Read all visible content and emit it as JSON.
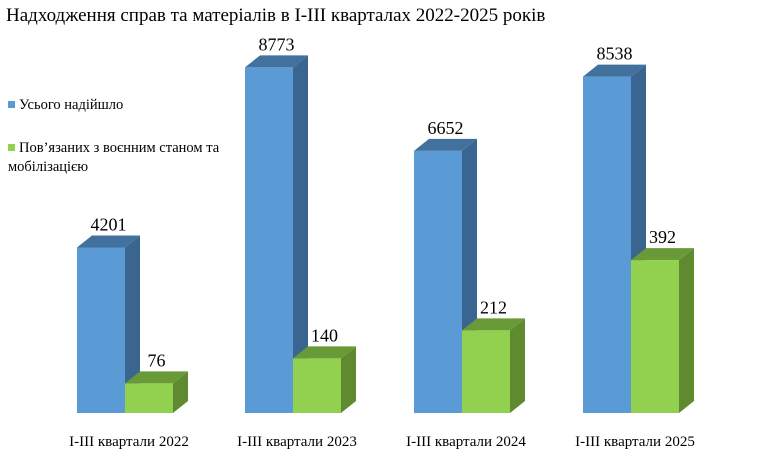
{
  "chart_data": {
    "type": "bar",
    "title": "Надходження справ та матеріалів в І-ІІІ кварталах 2022-2025 років",
    "categories": [
      "І-ІІІ квартали 2022",
      "І-ІІІ квартали 2023",
      "І-ІІІ квартали 2024",
      "І-ІІІ квартали 2025"
    ],
    "series": [
      {
        "name": "Усього надійшло",
        "values": [
          4201,
          8773,
          6652,
          8538
        ],
        "color": "#5b9bd5",
        "side": "#3a6590",
        "top": "#41719c"
      },
      {
        "name": "Пов’язаних з воєнним станом та мобілізацією",
        "values": [
          76,
          140,
          212,
          392
        ],
        "color": "#92d050",
        "side": "#5f8a30",
        "top": "#6a9a38"
      }
    ],
    "legend_position": "left",
    "grid": false,
    "style": "3d-column"
  }
}
